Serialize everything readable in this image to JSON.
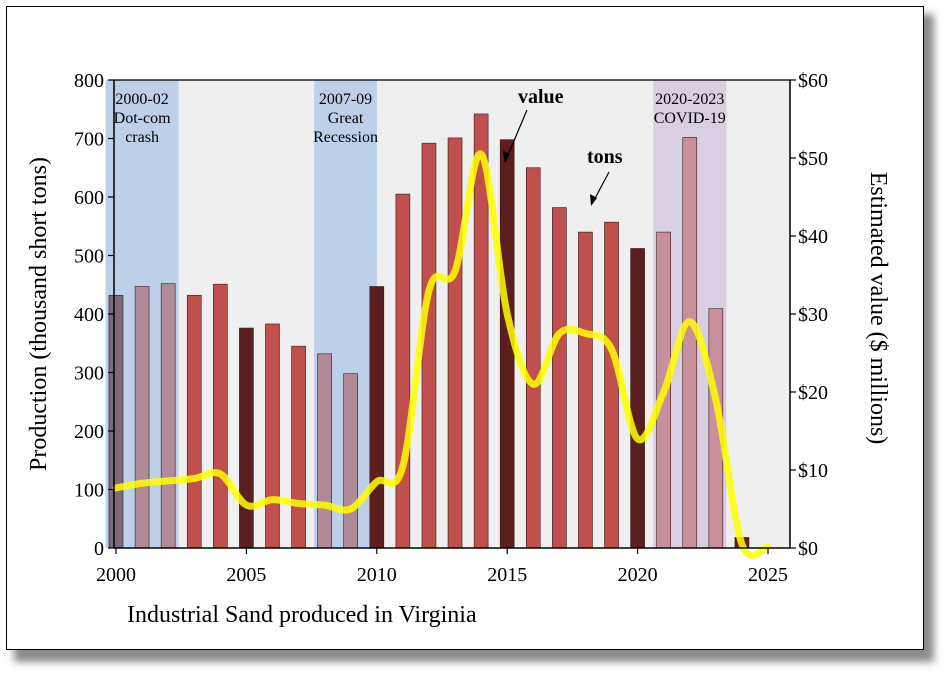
{
  "chart_data": {
    "type": "bar",
    "title": "Industrial Sand produced in Virginia",
    "ylabel": "Production (thousand short tons)",
    "y2label": "Estimated value ($ millions)",
    "xlim": [
      2000,
      2025
    ],
    "ylim": [
      0,
      800
    ],
    "y2lim": [
      0,
      60
    ],
    "x_ticks": [
      "2000",
      "2005",
      "2010",
      "2015",
      "2020",
      "2025"
    ],
    "y_ticks": [
      "0",
      "100",
      "200",
      "300",
      "400",
      "500",
      "600",
      "700",
      "800"
    ],
    "y2_ticks": [
      "$0",
      "$10",
      "$20",
      "$30",
      "$40",
      "$50",
      "$60"
    ],
    "grid": false,
    "series": [
      {
        "name": "tons",
        "axis": "left",
        "type": "bar",
        "x": [
          2000,
          2001,
          2002,
          2003,
          2004,
          2005,
          2006,
          2007,
          2008,
          2009,
          2010,
          2011,
          2012,
          2013,
          2014,
          2015,
          2016,
          2017,
          2018,
          2019,
          2020,
          2021,
          2022,
          2023,
          2024
        ],
        "values": [
          432,
          447,
          452,
          432,
          451,
          376,
          383,
          345,
          332,
          298,
          447,
          605,
          692,
          701,
          742,
          698,
          650,
          582,
          540,
          557,
          512,
          540,
          702,
          409,
          18
        ]
      },
      {
        "name": "value",
        "axis": "right",
        "type": "line",
        "x": [
          2000,
          2001,
          2002,
          2003,
          2004,
          2005,
          2006,
          2007,
          2008,
          2009,
          2010,
          2011,
          2012,
          2013,
          2014,
          2015,
          2016,
          2017,
          2018,
          2019,
          2020,
          2021,
          2022,
          2023,
          2024,
          2025
        ],
        "values": [
          7.7,
          8.3,
          8.6,
          8.9,
          9.5,
          5.5,
          6.2,
          5.7,
          5.5,
          5.0,
          8.5,
          10.5,
          33.0,
          35.5,
          50.5,
          30.0,
          21.0,
          27.5,
          27.5,
          25.5,
          14.0,
          20.0,
          29.0,
          19.0,
          0.5,
          0.2
        ]
      }
    ],
    "bar_colors": [
      "#7a6a7a",
      "#b08a96",
      "#b08a96",
      "#c0504d",
      "#c0504d",
      "#5c1f20",
      "#c0504d",
      "#c0504d",
      "#b08a96",
      "#b08a96",
      "#5c1f20",
      "#c0504d",
      "#c0504d",
      "#c0504d",
      "#c0504d",
      "#5c1f20",
      "#c0504d",
      "#c0504d",
      "#c0504d",
      "#c0504d",
      "#5c1f20",
      "#c8909c",
      "#c8909c",
      "#c8909c",
      "#5c1f20"
    ],
    "line_color": "#ffff00",
    "shaded_periods": [
      {
        "start": 1999.6,
        "end": 2002.4,
        "label": [
          "2000-02",
          "Dot-com",
          "crash"
        ],
        "color": "#bcd0ea"
      },
      {
        "start": 2007.6,
        "end": 2010.0,
        "label": [
          "2007-09",
          "Great",
          "Recession"
        ],
        "color": "#bcd0ea"
      },
      {
        "start": 2020.6,
        "end": 2023.4,
        "label": [
          "2020-2023",
          "COVID-19"
        ],
        "color": "#d9cfe0"
      }
    ],
    "annotations": [
      {
        "text": "value",
        "bold": true
      },
      {
        "text": "tons",
        "bold": true
      }
    ]
  }
}
